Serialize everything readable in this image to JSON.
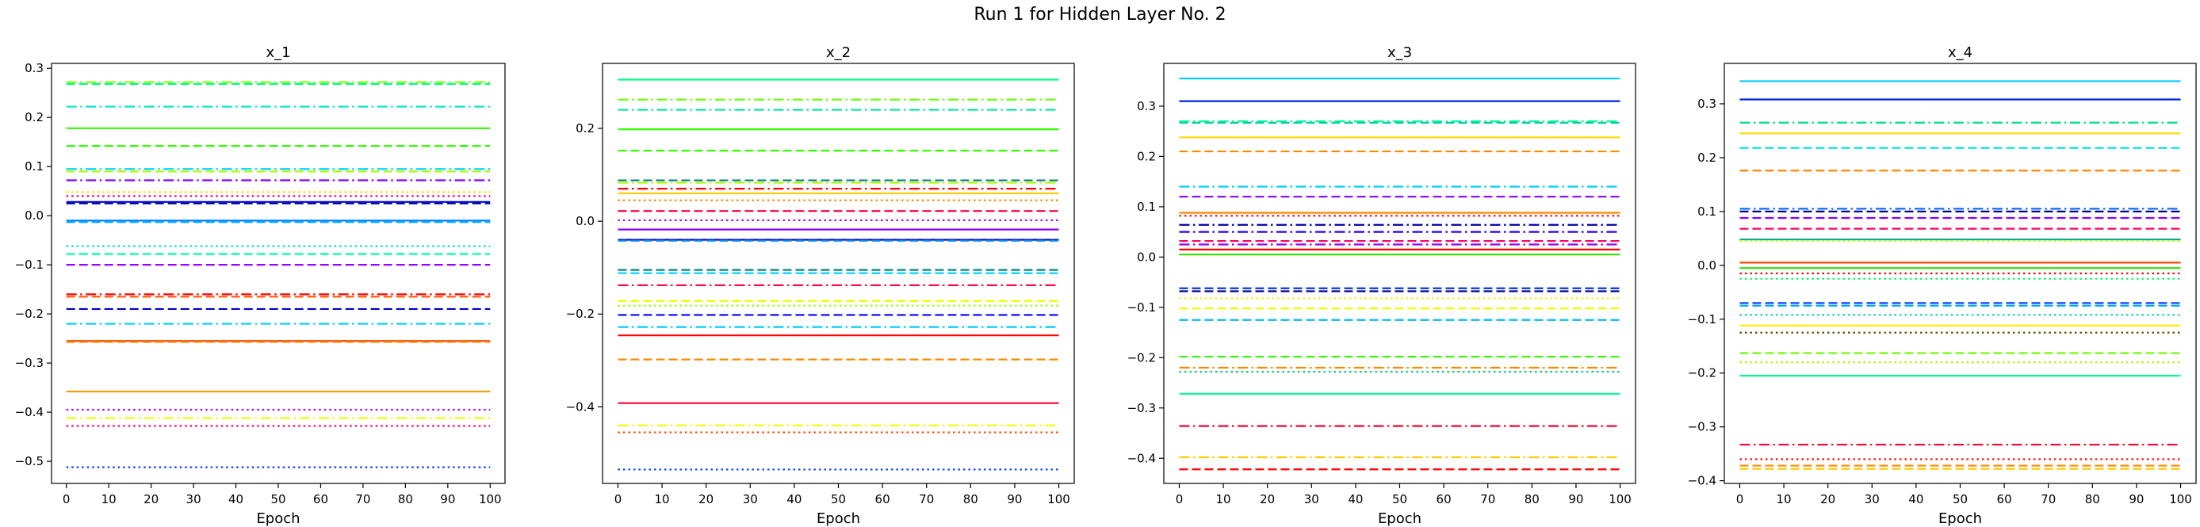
{
  "figure": {
    "title": "Run 1 for Hidden Layer No. 2"
  },
  "chart_data": [
    {
      "type": "line",
      "title": "x_1",
      "xlabel": "Epoch",
      "ylabel": "",
      "xlim": [
        -3.5,
        103.5
      ],
      "ylim": [
        -0.545,
        0.31
      ],
      "xticks": [
        0,
        10,
        20,
        30,
        40,
        50,
        60,
        70,
        80,
        90,
        100
      ],
      "yticks": [
        -0.5,
        -0.4,
        -0.3,
        -0.2,
        -0.1,
        0.0,
        0.1,
        0.2,
        0.3
      ],
      "ytick_labels": [
        "−0.5",
        "−0.4",
        "−0.3",
        "−0.2",
        "−0.1",
        "0.0",
        "0.1",
        "0.2",
        "0.3"
      ],
      "x": [
        0,
        100
      ],
      "series": [
        {
          "value": 0.272,
          "color": "#7fff00",
          "style": "dashdot"
        },
        {
          "value": 0.268,
          "color": "#00ff80",
          "style": "dashed"
        },
        {
          "value": 0.222,
          "color": "#00e5c8",
          "style": "dashdot"
        },
        {
          "value": 0.178,
          "color": "#33ff00",
          "style": "solid"
        },
        {
          "value": 0.142,
          "color": "#33ff00",
          "style": "dashed"
        },
        {
          "value": 0.095,
          "color": "#00d8ff",
          "style": "dashdot"
        },
        {
          "value": 0.09,
          "color": "#aaff00",
          "style": "dashed"
        },
        {
          "value": 0.072,
          "color": "#8000ff",
          "style": "dashdot"
        },
        {
          "value": 0.048,
          "color": "#ffdd00",
          "style": "dotted"
        },
        {
          "value": 0.04,
          "color": "#ff0080",
          "style": "dotted"
        },
        {
          "value": 0.028,
          "color": "#0000ff",
          "style": "solid"
        },
        {
          "value": 0.025,
          "color": "#000080",
          "style": "dashed"
        },
        {
          "value": -0.01,
          "color": "#0080ff",
          "style": "solid"
        },
        {
          "value": -0.013,
          "color": "#00aaff",
          "style": "dashed"
        },
        {
          "value": -0.062,
          "color": "#00e0c0",
          "style": "dotted"
        },
        {
          "value": -0.078,
          "color": "#00ffaa",
          "style": "dashed"
        },
        {
          "value": -0.1,
          "color": "#9900ff",
          "style": "dashed"
        },
        {
          "value": -0.16,
          "color": "#ff0000",
          "style": "dashdot"
        },
        {
          "value": -0.165,
          "color": "#ff5500",
          "style": "dashed"
        },
        {
          "value": -0.19,
          "color": "#0000cc",
          "style": "dashed"
        },
        {
          "value": -0.22,
          "color": "#00ccff",
          "style": "dashdot"
        },
        {
          "value": -0.255,
          "color": "#ff4400",
          "style": "solid"
        },
        {
          "value": -0.257,
          "color": "#ff8800",
          "style": "dashed"
        },
        {
          "value": -0.358,
          "color": "#ff9900",
          "style": "solid"
        },
        {
          "value": -0.395,
          "color": "#aa00ff",
          "style": "dotted"
        },
        {
          "value": -0.412,
          "color": "#eeff00",
          "style": "dashdot"
        },
        {
          "value": -0.428,
          "color": "#ff0066",
          "style": "dotted"
        },
        {
          "value": -0.512,
          "color": "#0033ff",
          "style": "dotted"
        }
      ]
    },
    {
      "type": "line",
      "title": "x_2",
      "xlabel": "Epoch",
      "ylabel": "",
      "xlim": [
        -3.5,
        103.5
      ],
      "ylim": [
        -0.565,
        0.34
      ],
      "xticks": [
        0,
        10,
        20,
        30,
        40,
        50,
        60,
        70,
        80,
        90,
        100
      ],
      "yticks": [
        -0.4,
        -0.2,
        0.0,
        0.2
      ],
      "ytick_labels": [
        "−0.4",
        "−0.2",
        "0.0",
        "0.2"
      ],
      "x": [
        0,
        100
      ],
      "series": [
        {
          "value": 0.305,
          "color": "#00ff80",
          "style": "solid"
        },
        {
          "value": 0.262,
          "color": "#66ff00",
          "style": "dashdot"
        },
        {
          "value": 0.24,
          "color": "#00e5a0",
          "style": "dashdot"
        },
        {
          "value": 0.198,
          "color": "#33ff00",
          "style": "solid"
        },
        {
          "value": 0.152,
          "color": "#33ff00",
          "style": "dashed"
        },
        {
          "value": 0.088,
          "color": "#008080",
          "style": "dashed"
        },
        {
          "value": 0.083,
          "color": "#aaff00",
          "style": "dashdot"
        },
        {
          "value": 0.07,
          "color": "#ff0000",
          "style": "dashdot"
        },
        {
          "value": 0.06,
          "color": "#ffcc00",
          "style": "solid"
        },
        {
          "value": 0.045,
          "color": "#ff8800",
          "style": "dotted"
        },
        {
          "value": 0.022,
          "color": "#ff0044",
          "style": "dashed"
        },
        {
          "value": 0.002,
          "color": "#aa00ff",
          "style": "dotted"
        },
        {
          "value": -0.018,
          "color": "#8800ff",
          "style": "solid"
        },
        {
          "value": -0.04,
          "color": "#0000aa",
          "style": "solid"
        },
        {
          "value": -0.042,
          "color": "#0088ff",
          "style": "dashed"
        },
        {
          "value": -0.105,
          "color": "#008888",
          "style": "dashed"
        },
        {
          "value": -0.112,
          "color": "#00ccff",
          "style": "dashed"
        },
        {
          "value": -0.138,
          "color": "#ff0044",
          "style": "dashdot"
        },
        {
          "value": -0.172,
          "color": "#eeff00",
          "style": "dashed"
        },
        {
          "value": -0.182,
          "color": "#99ff00",
          "style": "dotted"
        },
        {
          "value": -0.202,
          "color": "#0000ff",
          "style": "dashed"
        },
        {
          "value": -0.228,
          "color": "#00ccff",
          "style": "dashdot"
        },
        {
          "value": -0.246,
          "color": "#ff0000",
          "style": "solid"
        },
        {
          "value": -0.298,
          "color": "#ff8800",
          "style": "dashed"
        },
        {
          "value": -0.392,
          "color": "#ff0033",
          "style": "solid"
        },
        {
          "value": -0.44,
          "color": "#eeff00",
          "style": "dashdot"
        },
        {
          "value": -0.455,
          "color": "#ff4400",
          "style": "dotted"
        },
        {
          "value": -0.535,
          "color": "#0044ff",
          "style": "dotted"
        }
      ]
    },
    {
      "type": "line",
      "title": "x_3",
      "xlabel": "Epoch",
      "ylabel": "",
      "xlim": [
        -3.5,
        103.5
      ],
      "ylim": [
        -0.45,
        0.385
      ],
      "xticks": [
        0,
        10,
        20,
        30,
        40,
        50,
        60,
        70,
        80,
        90,
        100
      ],
      "yticks": [
        -0.4,
        -0.3,
        -0.2,
        -0.1,
        0.0,
        0.1,
        0.2,
        0.3
      ],
      "ytick_labels": [
        "−0.4",
        "−0.3",
        "−0.2",
        "−0.1",
        "0.0",
        "0.1",
        "0.2",
        "0.3"
      ],
      "x": [
        0,
        100
      ],
      "series": [
        {
          "value": 0.355,
          "color": "#00ccff",
          "style": "solid"
        },
        {
          "value": 0.31,
          "color": "#0022dd",
          "style": "solid"
        },
        {
          "value": 0.27,
          "color": "#00ff99",
          "style": "dashdot"
        },
        {
          "value": 0.267,
          "color": "#00ccaa",
          "style": "dashed"
        },
        {
          "value": 0.238,
          "color": "#ffdd00",
          "style": "solid"
        },
        {
          "value": 0.21,
          "color": "#ff8800",
          "style": "dashed"
        },
        {
          "value": 0.14,
          "color": "#00ccff",
          "style": "dashdot"
        },
        {
          "value": 0.12,
          "color": "#8800ff",
          "style": "dashed"
        },
        {
          "value": 0.088,
          "color": "#ff8800",
          "style": "solid"
        },
        {
          "value": 0.082,
          "color": "#ff0000",
          "style": "dotted"
        },
        {
          "value": 0.064,
          "color": "#0000aa",
          "style": "dashdot"
        },
        {
          "value": 0.05,
          "color": "#2200ff",
          "style": "dashdot"
        },
        {
          "value": 0.032,
          "color": "#ff0066",
          "style": "dashed"
        },
        {
          "value": 0.025,
          "color": "#9900ff",
          "style": "dashdot"
        },
        {
          "value": 0.015,
          "color": "#ff0000",
          "style": "solid"
        },
        {
          "value": 0.005,
          "color": "#33dd00",
          "style": "solid"
        },
        {
          "value": -0.062,
          "color": "#0033ff",
          "style": "dashed"
        },
        {
          "value": -0.068,
          "color": "#000088",
          "style": "dashed"
        },
        {
          "value": -0.082,
          "color": "#ffee00",
          "style": "dotted"
        },
        {
          "value": -0.102,
          "color": "#eeff00",
          "style": "dashed"
        },
        {
          "value": -0.125,
          "color": "#00bbff",
          "style": "dashed"
        },
        {
          "value": -0.198,
          "color": "#33ff00",
          "style": "dashed"
        },
        {
          "value": -0.22,
          "color": "#ff8800",
          "style": "dashdot"
        },
        {
          "value": -0.228,
          "color": "#00cc88",
          "style": "dotted"
        },
        {
          "value": -0.272,
          "color": "#00ff99",
          "style": "solid"
        },
        {
          "value": -0.336,
          "color": "#ff0033",
          "style": "dashdot"
        },
        {
          "value": -0.398,
          "color": "#ffcc00",
          "style": "dashdot"
        },
        {
          "value": -0.422,
          "color": "#ff0000",
          "style": "dashed"
        }
      ]
    },
    {
      "type": "line",
      "title": "x_4",
      "xlabel": "Epoch",
      "ylabel": "",
      "xlim": [
        -3.5,
        103.5
      ],
      "ylim": [
        -0.405,
        0.375
      ],
      "xticks": [
        0,
        10,
        20,
        30,
        40,
        50,
        60,
        70,
        80,
        90,
        100
      ],
      "yticks": [
        -0.4,
        -0.3,
        -0.2,
        -0.1,
        0.0,
        0.1,
        0.2,
        0.3
      ],
      "ytick_labels": [
        "−0.4",
        "−0.3",
        "−0.2",
        "−0.1",
        "0.0",
        "0.1",
        "0.2",
        "0.3"
      ],
      "x": [
        0,
        100
      ],
      "series": [
        {
          "value": 0.342,
          "color": "#00ccff",
          "style": "solid"
        },
        {
          "value": 0.308,
          "color": "#0022dd",
          "style": "solid"
        },
        {
          "value": 0.265,
          "color": "#00dd88",
          "style": "dashdot"
        },
        {
          "value": 0.245,
          "color": "#ffdd00",
          "style": "solid"
        },
        {
          "value": 0.218,
          "color": "#00dddd",
          "style": "dashed"
        },
        {
          "value": 0.176,
          "color": "#ff8800",
          "style": "dashed"
        },
        {
          "value": 0.105,
          "color": "#0066ff",
          "style": "dashdot"
        },
        {
          "value": 0.1,
          "color": "#000088",
          "style": "dashed"
        },
        {
          "value": 0.088,
          "color": "#8800ff",
          "style": "dashed"
        },
        {
          "value": 0.068,
          "color": "#ff0066",
          "style": "dashed"
        },
        {
          "value": 0.048,
          "color": "#00aa88",
          "style": "solid"
        },
        {
          "value": 0.045,
          "color": "#bbff00",
          "style": "dotted"
        },
        {
          "value": 0.005,
          "color": "#ff4400",
          "style": "solid"
        },
        {
          "value": -0.005,
          "color": "#33dd00",
          "style": "solid"
        },
        {
          "value": -0.015,
          "color": "#ff0000",
          "style": "dotted"
        },
        {
          "value": -0.025,
          "color": "#00ff66",
          "style": "dotted"
        },
        {
          "value": -0.07,
          "color": "#0044ff",
          "style": "dashed"
        },
        {
          "value": -0.075,
          "color": "#00aaff",
          "style": "dashed"
        },
        {
          "value": -0.092,
          "color": "#00ccbb",
          "style": "dotted"
        },
        {
          "value": -0.112,
          "color": "#ffee00",
          "style": "solid"
        },
        {
          "value": -0.125,
          "color": "#555500",
          "style": "dotted"
        },
        {
          "value": -0.163,
          "color": "#66ff00",
          "style": "dashed"
        },
        {
          "value": -0.18,
          "color": "#bbee00",
          "style": "dotted"
        },
        {
          "value": -0.205,
          "color": "#00ff99",
          "style": "solid"
        },
        {
          "value": -0.333,
          "color": "#ff0033",
          "style": "dashdot"
        },
        {
          "value": -0.36,
          "color": "#ff0000",
          "style": "dotted"
        },
        {
          "value": -0.372,
          "color": "#ff8800",
          "style": "dashed"
        },
        {
          "value": -0.378,
          "color": "#ffcc00",
          "style": "dashed"
        }
      ]
    }
  ]
}
